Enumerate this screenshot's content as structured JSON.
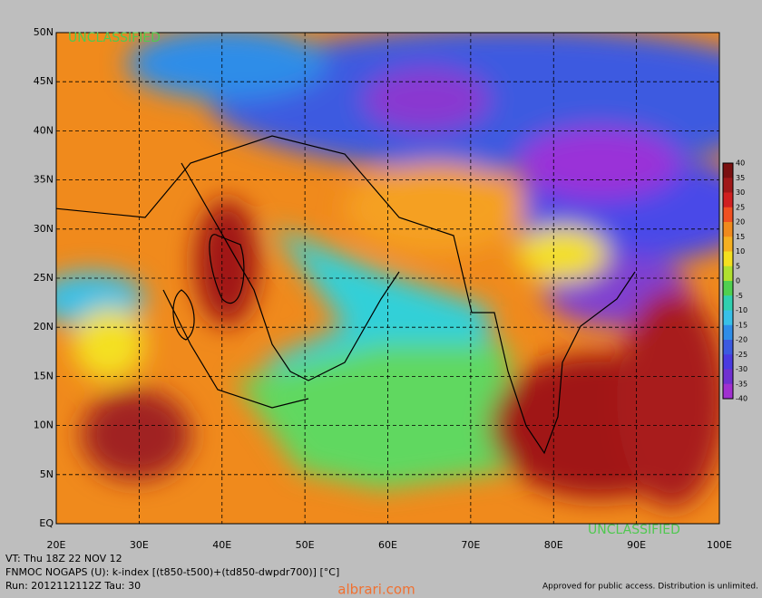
{
  "header": {
    "top_left": "UNCLASSIFIED",
    "bottom_right": "UNCLASSIFIED"
  },
  "map": {
    "lat_labels": [
      "50N",
      "45N",
      "40N",
      "35N",
      "30N",
      "25N",
      "20N",
      "15N",
      "10N",
      "5N",
      "EQ"
    ],
    "lon_labels": [
      "20E",
      "30E",
      "40E",
      "50E",
      "60E",
      "70E",
      "80E",
      "90E",
      "100E"
    ]
  },
  "colorbar": {
    "labels": [
      40,
      35,
      30,
      25,
      20,
      15,
      10,
      5,
      0,
      -5,
      -10,
      -15,
      -20,
      -25,
      -30,
      -35,
      -40
    ]
  },
  "footer": {
    "line1": "VT: Thu 18Z 22 NOV 12",
    "line2": "FNMOC NOGAPS (U): k-index [(t850-t500)+(td850-dwpdr700)] [°C]",
    "line3": "Run: 2012112112Z Tau: 30",
    "approval": "Approved for public access. Distribution is unlimited.",
    "watermark": "albrari.com"
  }
}
